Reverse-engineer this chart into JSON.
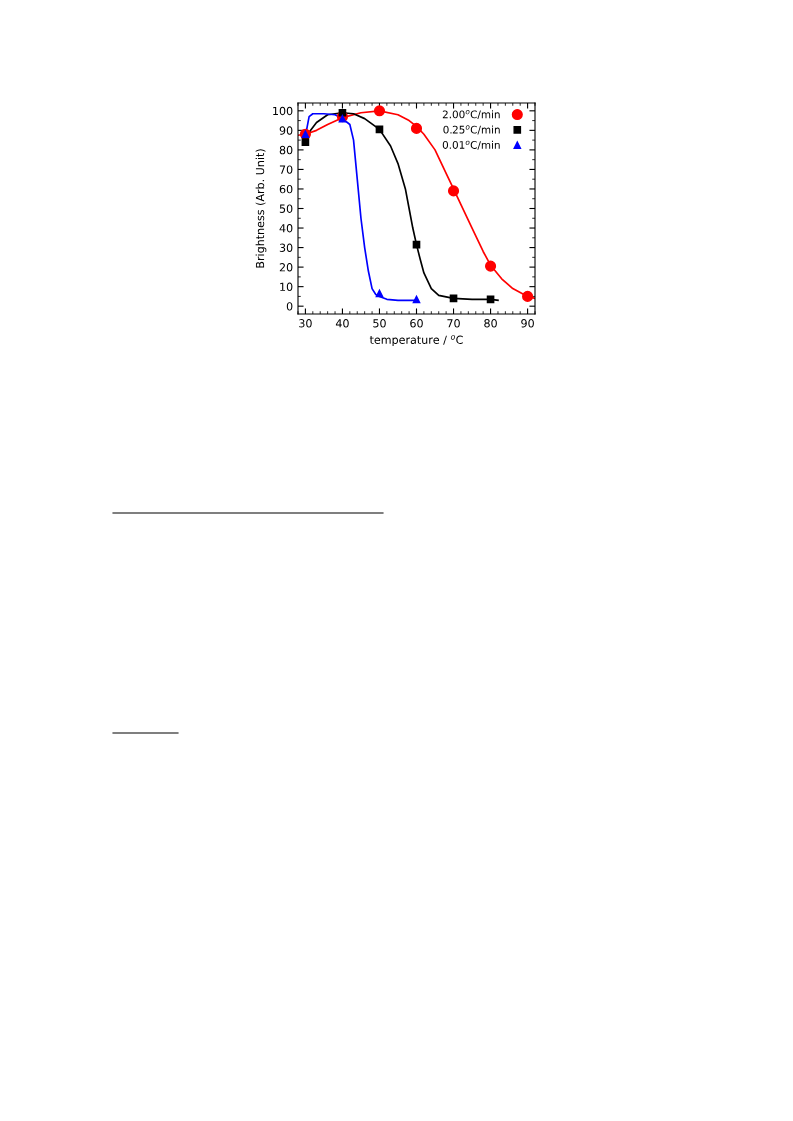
{
  "chart_data": {
    "type": "scatter",
    "xlabel": "temperature / $^{o}$C",
    "ylabel": "Brightness (Arb. Unit)",
    "xlim": [
      28,
      92
    ],
    "ylim": [
      -4,
      104
    ],
    "xticks": [
      30,
      40,
      50,
      60,
      70,
      80,
      90
    ],
    "yticks": [
      0,
      10,
      20,
      30,
      40,
      50,
      60,
      70,
      80,
      90,
      100
    ],
    "legend": "top right",
    "series": [
      {
        "name": "2.00$^{o}$C/min",
        "color": "#ff0000",
        "marker": "circle",
        "x": [
          30,
          40,
          50,
          60,
          70,
          80,
          90
        ],
        "values": [
          88,
          97,
          100,
          91,
          59,
          20.5,
          5
        ]
      },
      {
        "name": "0.25$^{o}$C/min",
        "color": "#000000",
        "marker": "square",
        "x": [
          30,
          40,
          50,
          60,
          70,
          80
        ],
        "values": [
          84,
          99,
          90.5,
          31.5,
          4,
          3.5
        ]
      },
      {
        "name": "0.01$^{o}$C/min",
        "color": "#0000ff",
        "marker": "triangle",
        "x": [
          30,
          40,
          50,
          60
        ],
        "values": [
          88,
          96,
          6.5,
          3.5
        ]
      },
      {
        "color": "#ff0000",
        "type": "line",
        "x": [
          28,
          30,
          33,
          36,
          40,
          45,
          50,
          55,
          58,
          60,
          62,
          65,
          68,
          70,
          72,
          75,
          78,
          80,
          83,
          86,
          90,
          92
        ],
        "values": [
          87.5,
          88,
          90,
          93,
          96.5,
          99,
          100,
          98,
          95,
          92,
          88,
          80,
          68,
          60,
          52,
          40,
          28,
          21,
          14,
          9,
          5,
          4
        ]
      },
      {
        "color": "#000000",
        "type": "line",
        "x": [
          30,
          31,
          33,
          36,
          40,
          43,
          46,
          50,
          53,
          55,
          57,
          58,
          59,
          60,
          61,
          62,
          64,
          66,
          70,
          75,
          80,
          82
        ],
        "values": [
          85,
          89,
          94,
          98,
          99,
          98.5,
          96,
          90.5,
          82,
          73,
          60,
          50,
          40,
          31.5,
          24,
          17,
          9,
          5.5,
          4,
          3.5,
          3.5,
          3
        ]
      },
      {
        "color": "#0000ff",
        "type": "line",
        "x": [
          30,
          30.5,
          31,
          32,
          35,
          38,
          40,
          42,
          43,
          44,
          45,
          46,
          47,
          48,
          49,
          50,
          52,
          55,
          60
        ],
        "values": [
          87,
          92,
          97,
          98.5,
          98.5,
          98,
          96,
          93,
          85,
          65,
          45,
          30,
          18,
          9,
          6,
          5,
          3.5,
          3,
          3
        ]
      }
    ]
  }
}
